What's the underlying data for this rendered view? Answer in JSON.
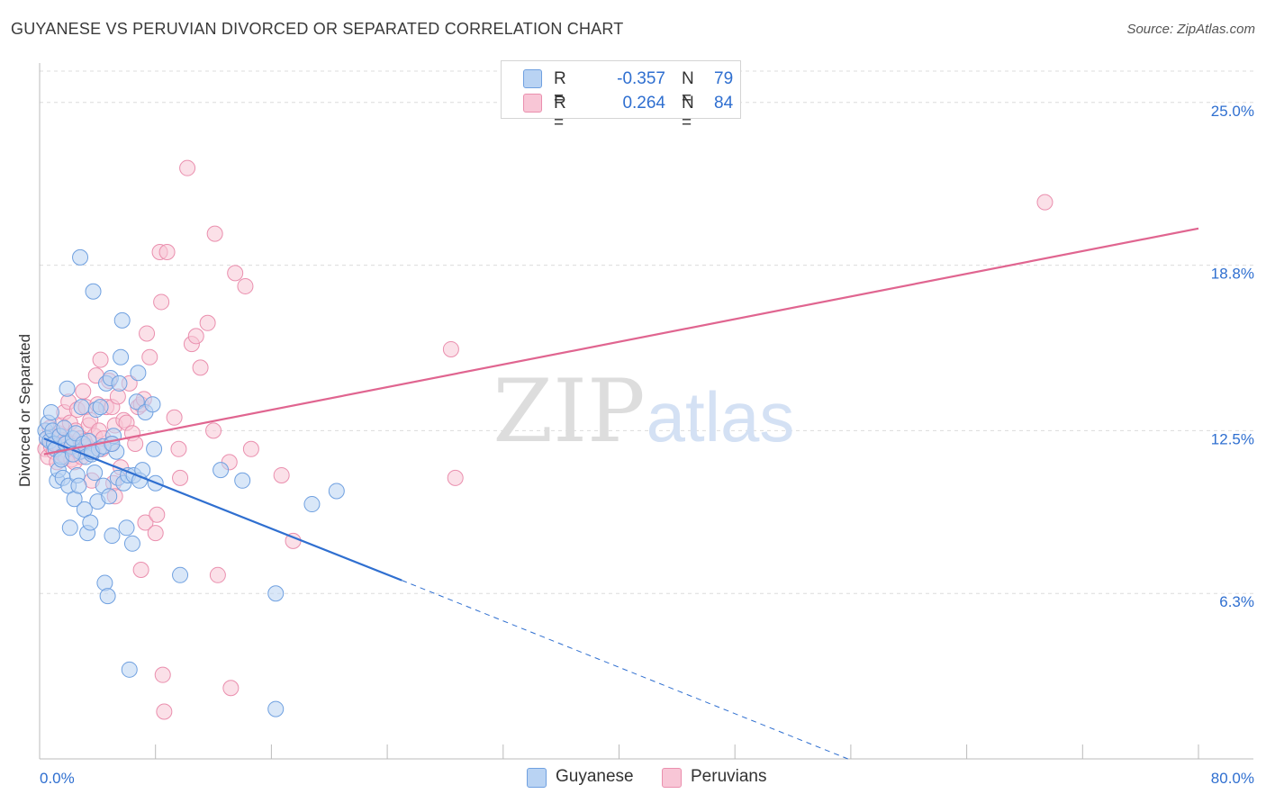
{
  "title": "GUYANESE VS PERUVIAN DIVORCED OR SEPARATED CORRELATION CHART",
  "source": "Source: ZipAtlas.com",
  "watermark": {
    "zip": "ZIP",
    "atlas": "atlas"
  },
  "legend": {
    "r_label": "R =",
    "n_label": "N =",
    "rows": [
      {
        "r": "-0.357",
        "n": "79",
        "fill": "#b9d3f3",
        "stroke": "#6fa0e0"
      },
      {
        "r": "0.264",
        "n": "84",
        "fill": "#f8c6d6",
        "stroke": "#ea8fae"
      }
    ]
  },
  "chart_data": {
    "type": "scatter",
    "title": "GUYANESE VS PERUVIAN DIVORCED OR SEPARATED CORRELATION CHART",
    "xlabel": "",
    "ylabel": "Divorced or Separated",
    "xlim": [
      0,
      80
    ],
    "ylim": [
      0,
      26.5
    ],
    "x_tick_labels": {
      "min": "0.0%",
      "max": "80.0%"
    },
    "y_ticks": [
      {
        "value": 6.3,
        "label": "6.3%"
      },
      {
        "value": 12.5,
        "label": "12.5%"
      },
      {
        "value": 18.8,
        "label": "18.8%"
      },
      {
        "value": 25.0,
        "label": "25.0%"
      }
    ],
    "grid": true,
    "legend_position": "top-center",
    "series": [
      {
        "name": "Guyanese",
        "color": "#2f6fd0",
        "fill": "#b9d3f3",
        "stroke": "#6fa0e0",
        "trend": {
          "x0": 0.3,
          "y0": 12.2,
          "x1": 25.0,
          "y1": 6.8,
          "dash_x1": 55.8,
          "dash_y1": 0.0
        },
        "points": [
          [
            0.4,
            12.5
          ],
          [
            0.5,
            12.2
          ],
          [
            0.6,
            12.8
          ],
          [
            0.7,
            12.1
          ],
          [
            0.8,
            13.2
          ],
          [
            0.9,
            12.5
          ],
          [
            1.0,
            12.0
          ],
          [
            1.1,
            11.8
          ],
          [
            1.2,
            10.6
          ],
          [
            1.3,
            11.0
          ],
          [
            1.4,
            12.3
          ],
          [
            1.5,
            11.5
          ],
          [
            1.6,
            10.7
          ],
          [
            1.7,
            12.6
          ],
          [
            1.8,
            12.0
          ],
          [
            1.9,
            14.1
          ],
          [
            2.0,
            10.4
          ],
          [
            2.1,
            8.8
          ],
          [
            2.2,
            11.9
          ],
          [
            2.3,
            12.2
          ],
          [
            2.4,
            9.9
          ],
          [
            2.5,
            12.4
          ],
          [
            2.6,
            10.8
          ],
          [
            2.7,
            10.4
          ],
          [
            2.8,
            11.7
          ],
          [
            2.9,
            13.4
          ],
          [
            3.0,
            12.0
          ],
          [
            3.1,
            9.5
          ],
          [
            3.2,
            11.5
          ],
          [
            3.3,
            8.6
          ],
          [
            3.4,
            12.1
          ],
          [
            3.5,
            9.0
          ],
          [
            3.6,
            11.6
          ],
          [
            3.7,
            17.8
          ],
          [
            3.8,
            10.9
          ],
          [
            3.9,
            13.3
          ],
          [
            4.0,
            9.8
          ],
          [
            4.1,
            11.8
          ],
          [
            4.2,
            13.4
          ],
          [
            4.4,
            10.4
          ],
          [
            4.5,
            6.7
          ],
          [
            4.6,
            14.3
          ],
          [
            4.7,
            6.2
          ],
          [
            4.8,
            10.0
          ],
          [
            4.9,
            14.5
          ],
          [
            5.0,
            8.5
          ],
          [
            5.1,
            12.3
          ],
          [
            5.3,
            11.7
          ],
          [
            5.4,
            10.7
          ],
          [
            5.5,
            14.3
          ],
          [
            5.6,
            15.3
          ],
          [
            5.7,
            16.7
          ],
          [
            5.8,
            10.5
          ],
          [
            6.0,
            8.8
          ],
          [
            6.1,
            10.8
          ],
          [
            6.2,
            3.4
          ],
          [
            6.4,
            8.2
          ],
          [
            6.5,
            10.8
          ],
          [
            6.7,
            13.6
          ],
          [
            6.8,
            14.7
          ],
          [
            6.9,
            10.6
          ],
          [
            7.1,
            11.0
          ],
          [
            7.3,
            13.2
          ],
          [
            7.8,
            13.5
          ],
          [
            7.9,
            11.8
          ],
          [
            8.0,
            10.5
          ],
          [
            9.7,
            7.0
          ],
          [
            12.5,
            11.0
          ],
          [
            14.0,
            10.6
          ],
          [
            16.3,
            6.3
          ],
          [
            18.8,
            9.7
          ],
          [
            20.5,
            10.2
          ],
          [
            16.3,
            1.9
          ],
          [
            2.8,
            19.1
          ],
          [
            1.5,
            11.4
          ],
          [
            2.3,
            11.6
          ],
          [
            3.6,
            11.7
          ],
          [
            4.4,
            11.9
          ],
          [
            5.0,
            12.0
          ]
        ]
      },
      {
        "name": "Peruvians",
        "color": "#e06590",
        "fill": "#f8c6d6",
        "stroke": "#ea8fae",
        "trend": {
          "x0": 0.3,
          "y0": 11.6,
          "x1": 80.0,
          "y1": 20.2
        },
        "points": [
          [
            0.4,
            11.8
          ],
          [
            0.5,
            12.2
          ],
          [
            0.6,
            11.5
          ],
          [
            0.7,
            12.6
          ],
          [
            0.8,
            11.9
          ],
          [
            0.9,
            12.3
          ],
          [
            1.0,
            11.7
          ],
          [
            1.1,
            12.0
          ],
          [
            1.2,
            11.3
          ],
          [
            1.3,
            12.4
          ],
          [
            1.4,
            11.9
          ],
          [
            1.5,
            12.7
          ],
          [
            1.6,
            11.6
          ],
          [
            1.7,
            13.2
          ],
          [
            1.8,
            11.5
          ],
          [
            1.9,
            12.1
          ],
          [
            2.0,
            13.6
          ],
          [
            2.1,
            12.8
          ],
          [
            2.2,
            11.4
          ],
          [
            2.3,
            12.0
          ],
          [
            2.4,
            11.3
          ],
          [
            2.5,
            12.5
          ],
          [
            2.6,
            13.3
          ],
          [
            2.7,
            11.7
          ],
          [
            2.8,
            12.2
          ],
          [
            2.9,
            11.5
          ],
          [
            3.0,
            14.0
          ],
          [
            3.1,
            12.1
          ],
          [
            3.2,
            13.4
          ],
          [
            3.3,
            11.9
          ],
          [
            3.4,
            12.7
          ],
          [
            3.5,
            12.9
          ],
          [
            3.6,
            10.6
          ],
          [
            3.7,
            11.7
          ],
          [
            3.8,
            12.3
          ],
          [
            3.9,
            14.6
          ],
          [
            4.0,
            13.5
          ],
          [
            4.1,
            12.5
          ],
          [
            4.2,
            15.2
          ],
          [
            4.3,
            11.8
          ],
          [
            4.4,
            12.2
          ],
          [
            4.6,
            13.4
          ],
          [
            4.8,
            14.4
          ],
          [
            4.9,
            12.0
          ],
          [
            5.0,
            13.4
          ],
          [
            5.1,
            10.5
          ],
          [
            5.2,
            12.7
          ],
          [
            5.4,
            13.8
          ],
          [
            5.6,
            11.1
          ],
          [
            5.8,
            12.9
          ],
          [
            6.0,
            12.8
          ],
          [
            6.2,
            14.3
          ],
          [
            6.4,
            12.4
          ],
          [
            6.6,
            12.0
          ],
          [
            6.8,
            13.4
          ],
          [
            7.0,
            13.5
          ],
          [
            7.2,
            13.7
          ],
          [
            7.3,
            9.0
          ],
          [
            7.4,
            16.2
          ],
          [
            7.6,
            15.3
          ],
          [
            8.0,
            8.6
          ],
          [
            8.1,
            9.3
          ],
          [
            8.3,
            19.3
          ],
          [
            8.4,
            17.4
          ],
          [
            8.8,
            19.3
          ],
          [
            9.3,
            13.0
          ],
          [
            9.6,
            11.8
          ],
          [
            9.7,
            10.7
          ],
          [
            10.2,
            22.5
          ],
          [
            10.5,
            15.8
          ],
          [
            10.8,
            16.1
          ],
          [
            11.1,
            14.9
          ],
          [
            11.6,
            16.6
          ],
          [
            12.0,
            12.5
          ],
          [
            12.1,
            20.0
          ],
          [
            13.1,
            11.3
          ],
          [
            13.5,
            18.5
          ],
          [
            14.2,
            18.0
          ],
          [
            14.6,
            11.8
          ],
          [
            16.7,
            10.8
          ],
          [
            17.5,
            8.3
          ],
          [
            28.4,
            15.6
          ],
          [
            28.7,
            10.7
          ],
          [
            69.4,
            21.2
          ]
        ],
        "outliers": [
          [
            8.5,
            3.2
          ],
          [
            8.6,
            1.8
          ],
          [
            12.3,
            7.0
          ],
          [
            13.2,
            2.7
          ],
          [
            7.0,
            7.2
          ],
          [
            5.2,
            10.0
          ]
        ]
      }
    ]
  },
  "bottom_legend": [
    {
      "label": "Guyanese"
    },
    {
      "label": "Peruvians"
    }
  ]
}
